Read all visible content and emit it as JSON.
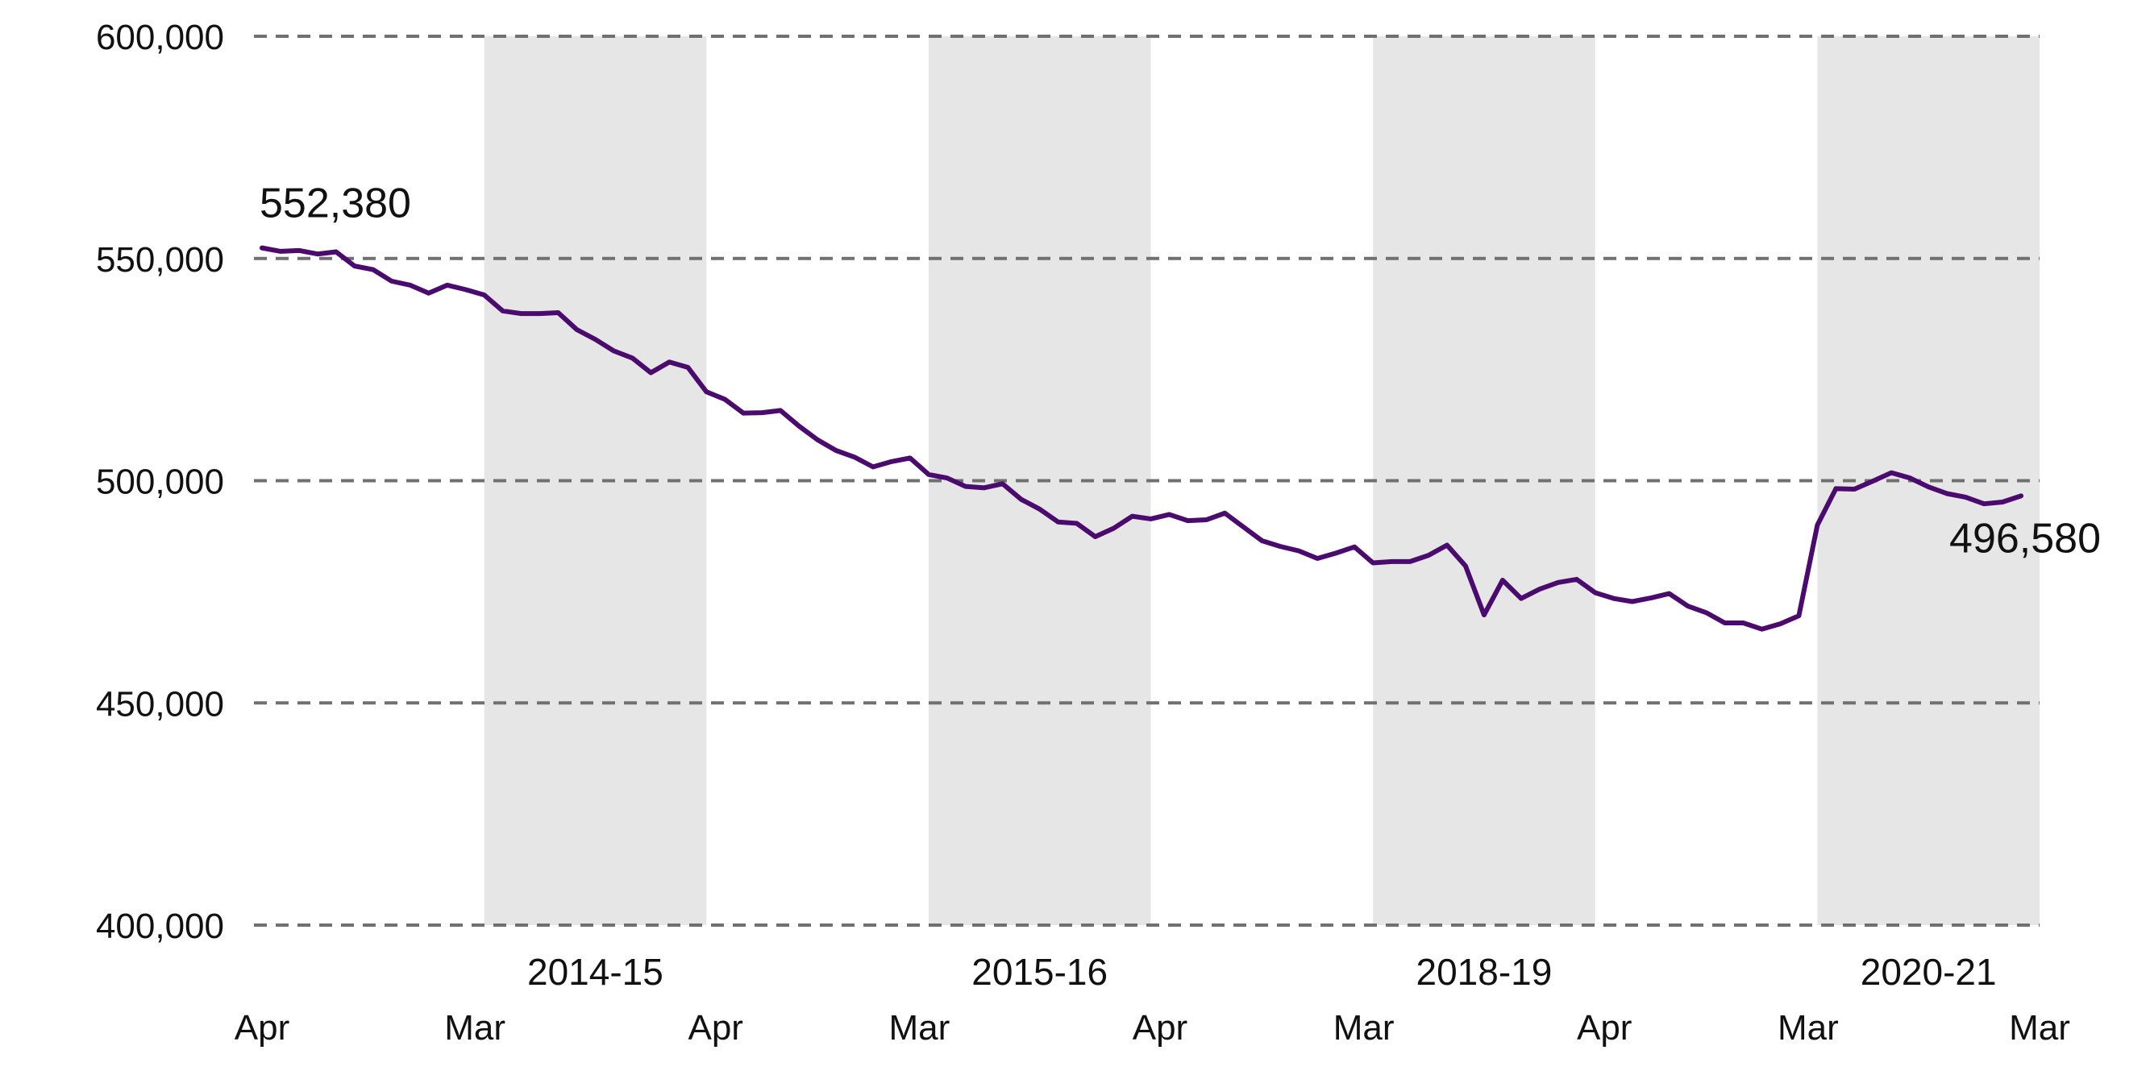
{
  "chart_data": {
    "type": "line",
    "title": "",
    "xlabel": "",
    "ylabel": "",
    "ylim": [
      400000,
      600000
    ],
    "yticks": [
      400000,
      450000,
      500000,
      550000,
      600000
    ],
    "ytick_labels": [
      "400,000",
      "450,000",
      "500,000",
      "550,000",
      "600,000"
    ],
    "grid": "horizontal dashed",
    "x_range": [
      0,
      96
    ],
    "month_labels": [
      {
        "label": "Apr",
        "x": 0
      },
      {
        "label": "Mar",
        "x": 11.5
      },
      {
        "label": "Apr",
        "x": 24.5
      },
      {
        "label": "Mar",
        "x": 35.5
      },
      {
        "label": "Apr",
        "x": 48.5
      },
      {
        "label": "Mar",
        "x": 59.5
      },
      {
        "label": "Apr",
        "x": 72.5
      },
      {
        "label": "Mar",
        "x": 83.5
      },
      {
        "label": "Mar",
        "x": 96
      }
    ],
    "bands": [
      {
        "label": "2014-15",
        "x0": 12,
        "x1": 24
      },
      {
        "label": "2015-16",
        "x0": 36,
        "x1": 48
      },
      {
        "label": "2018-19",
        "x0": 60,
        "x1": 72
      },
      {
        "label": "2020-21",
        "x0": 84,
        "x1": 96
      }
    ],
    "series": [
      {
        "color": "#4b0a6e",
        "values": [
          552380,
          551600,
          551800,
          551000,
          551500,
          548300,
          547500,
          544900,
          544000,
          542200,
          544000,
          543000,
          541800,
          538200,
          537600,
          537600,
          537800,
          534000,
          531800,
          529200,
          527600,
          524300,
          526700,
          525500,
          520000,
          518300,
          515200,
          515300,
          515800,
          512300,
          509200,
          506800,
          505300,
          503100,
          504300,
          505100,
          501400,
          500600,
          498700,
          498400,
          499300,
          495800,
          493600,
          490700,
          490400,
          487400,
          489300,
          492000,
          491400,
          492400,
          491000,
          491200,
          492700,
          489600,
          486500,
          485200,
          484200,
          482500,
          483700,
          485100,
          481500,
          481800,
          481800,
          483200,
          485500,
          480800,
          469800,
          477600,
          473500,
          475600,
          477100,
          477800,
          474800,
          473500,
          472800,
          473600,
          474600,
          471800,
          470300,
          468000,
          468000,
          466600,
          467800,
          469600,
          490000,
          498200,
          498100,
          499900,
          501800,
          500600,
          498600,
          497100,
          496300,
          494800,
          495200,
          496580
        ]
      }
    ],
    "annotations": [
      {
        "text": "552,380",
        "point_index": 0
      },
      {
        "text": "496,580",
        "point_index": 95
      }
    ],
    "colors": {
      "line": "#4b0a6e",
      "band": "#e6e6e6",
      "grid": "#707070"
    }
  }
}
